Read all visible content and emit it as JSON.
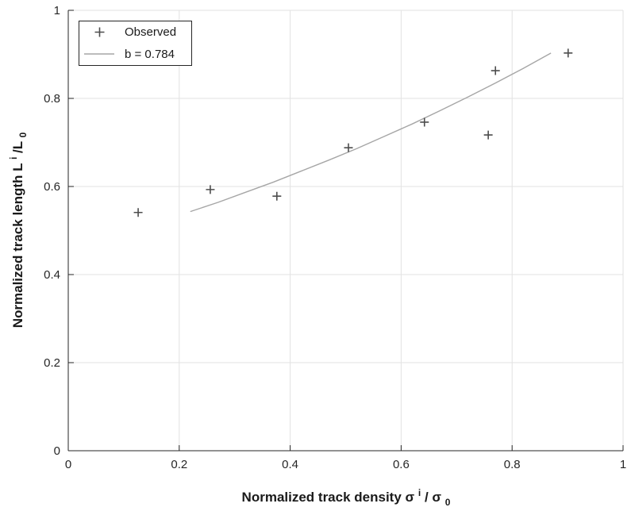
{
  "figure": {
    "background": "#ffffff"
  },
  "style": {
    "grid_color": "#e2e2e2",
    "spine_color": "#262626",
    "tick_label_color": "#262626",
    "marker_color": "#4d4d4d",
    "fit_line_color": "#a6a6a6",
    "legend_border_color": "#262626"
  },
  "legend": {
    "position": "top-left",
    "items": [
      {
        "marker": "plus",
        "label": "Observed"
      },
      {
        "marker": "line",
        "label": "b = 0.784"
      }
    ]
  },
  "axes": {
    "x": {
      "label_main": "Normalized track density σ",
      "label_sup": "i",
      "label_mid": "/ σ",
      "label_sub": "0",
      "ticks": [
        0,
        0.2,
        0.4,
        0.6,
        0.8,
        1
      ],
      "tick_labels": [
        "0",
        "0.2",
        "0.4",
        "0.6",
        "0.8",
        "1"
      ],
      "range": [
        0,
        1
      ]
    },
    "y": {
      "label_main": "Normalized track length L",
      "label_sup": "i",
      "label_mid": "/L",
      "label_sub": "0",
      "ticks": [
        0,
        0.2,
        0.4,
        0.6,
        0.8,
        1
      ],
      "tick_labels": [
        "0",
        "0.2",
        "0.4",
        "0.6",
        "0.8",
        "1"
      ],
      "range": [
        0,
        1
      ]
    }
  },
  "chart_data": {
    "type": "scatter",
    "title": "",
    "xlabel": "Normalized track density σi/σ0",
    "ylabel": "Normalized track length Li/L0",
    "xlim": [
      0,
      1
    ],
    "ylim": [
      0,
      1
    ],
    "grid": true,
    "legend_position": "top-left",
    "series": [
      {
        "name": "Observed",
        "type": "scatter",
        "marker": "plus",
        "points": [
          [
            0.126,
            0.541
          ],
          [
            0.256,
            0.593
          ],
          [
            0.376,
            0.578
          ],
          [
            0.505,
            0.688
          ],
          [
            0.642,
            0.746
          ],
          [
            0.757,
            0.717
          ],
          [
            0.77,
            0.863
          ],
          [
            0.901,
            0.903
          ]
        ]
      },
      {
        "name": "b = 0.784",
        "type": "line",
        "b_value": 0.784,
        "points": [
          [
            0.22,
            0.543
          ],
          [
            0.27,
            0.564
          ],
          [
            0.32,
            0.587
          ],
          [
            0.37,
            0.61
          ],
          [
            0.42,
            0.635
          ],
          [
            0.47,
            0.66
          ],
          [
            0.52,
            0.686
          ],
          [
            0.57,
            0.714
          ],
          [
            0.62,
            0.742
          ],
          [
            0.67,
            0.772
          ],
          [
            0.72,
            0.803
          ],
          [
            0.77,
            0.835
          ],
          [
            0.82,
            0.868
          ],
          [
            0.87,
            0.903
          ]
        ]
      }
    ]
  }
}
